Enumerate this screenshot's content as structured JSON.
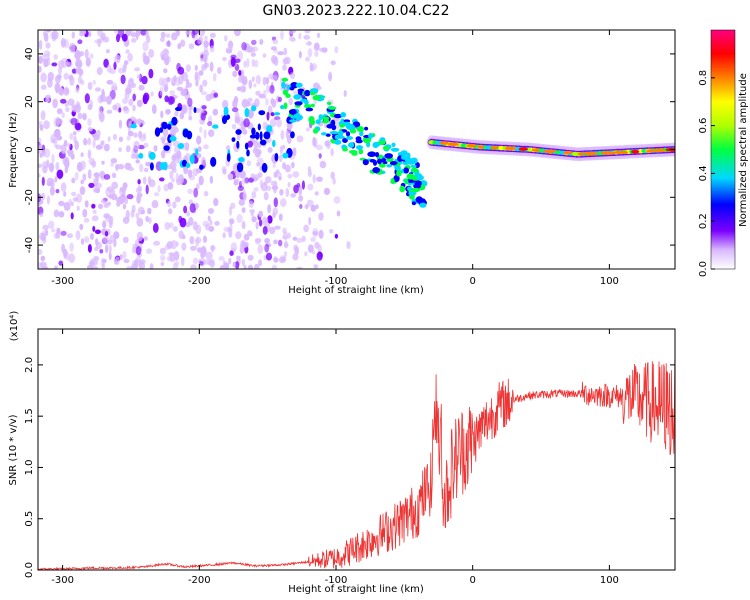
{
  "figure_title": "GN03.2023.222.10.04.C22",
  "chart_data": [
    {
      "type": "heatmap",
      "title": "",
      "xlabel": "Height of straight line (km)",
      "ylabel": "Frequency (Hz)",
      "xlim": [
        -318,
        148
      ],
      "ylim": [
        -50,
        50
      ],
      "xticks": [
        -300,
        -200,
        -100,
        0,
        100
      ],
      "yticks": [
        -40,
        -20,
        0,
        20,
        40
      ],
      "colorbar": {
        "label": "Normalized spectral amplitude",
        "range": [
          0,
          1
        ],
        "ticks": [
          0.0,
          0.2,
          0.4,
          0.6,
          0.8
        ],
        "tick_labels": [
          "0.0",
          "0.2",
          "0.4",
          "0.6",
          "0.8"
        ],
        "colors": [
          "#ffffff",
          "#d9b8ff",
          "#7a00ff",
          "#0000ff",
          "#00d8ff",
          "#00ff40",
          "#b0ff00",
          "#ffff00",
          "#ff8000",
          "#ff0000",
          "#ff0080"
        ]
      },
      "features": [
        {
          "name": "scattered",
          "x_range": [
            -318,
            -130
          ],
          "y_range": [
            -50,
            50
          ],
          "level": 0.12
        },
        {
          "name": "descending branch",
          "x": [
            -140,
            -120,
            -100,
            -80,
            -60,
            -45,
            -35
          ],
          "y": [
            22,
            18,
            10,
            2,
            -5,
            -12,
            -20
          ],
          "level": 0.35
        },
        {
          "name": "steady band",
          "x_range": [
            -30,
            148
          ],
          "y": [
            3,
            1,
            0,
            -2,
            -1,
            0
          ],
          "peak_level": 0.9
        }
      ]
    },
    {
      "type": "line",
      "title": "",
      "xlabel": "Height of straight line (km)",
      "ylabel": "SNR (10 * v/v)",
      "ylim_scale_label": "(x10⁴)",
      "xlim": [
        -318,
        148
      ],
      "ylim": [
        0,
        2.35
      ],
      "xticks": [
        -300,
        -200,
        -100,
        0,
        100
      ],
      "yticks": [
        0.0,
        0.5,
        1.0,
        1.5,
        2.0
      ],
      "color": "#ee3333",
      "series": [
        {
          "x": [
            -318,
            -300,
            -280,
            -260,
            -240,
            -225,
            -210,
            -190,
            -175,
            -160,
            -140,
            -120,
            -100,
            -90,
            -80,
            -70,
            -60,
            -50,
            -40,
            -35,
            -30,
            -28,
            -25,
            -22,
            -20,
            -15,
            -10,
            0,
            10,
            20,
            30,
            40,
            60,
            80,
            100,
            120,
            140,
            148
          ],
          "y": [
            0.01,
            0.01,
            0.02,
            0.02,
            0.03,
            0.06,
            0.03,
            0.05,
            0.07,
            0.04,
            0.05,
            0.08,
            0.12,
            0.18,
            0.25,
            0.33,
            0.4,
            0.5,
            0.6,
            0.75,
            0.85,
            1.6,
            1.3,
            0.9,
            0.7,
            1.0,
            1.15,
            1.25,
            1.45,
            1.6,
            1.66,
            1.7,
            1.72,
            1.72,
            1.7,
            1.68,
            1.6,
            1.55
          ]
        }
      ]
    }
  ]
}
